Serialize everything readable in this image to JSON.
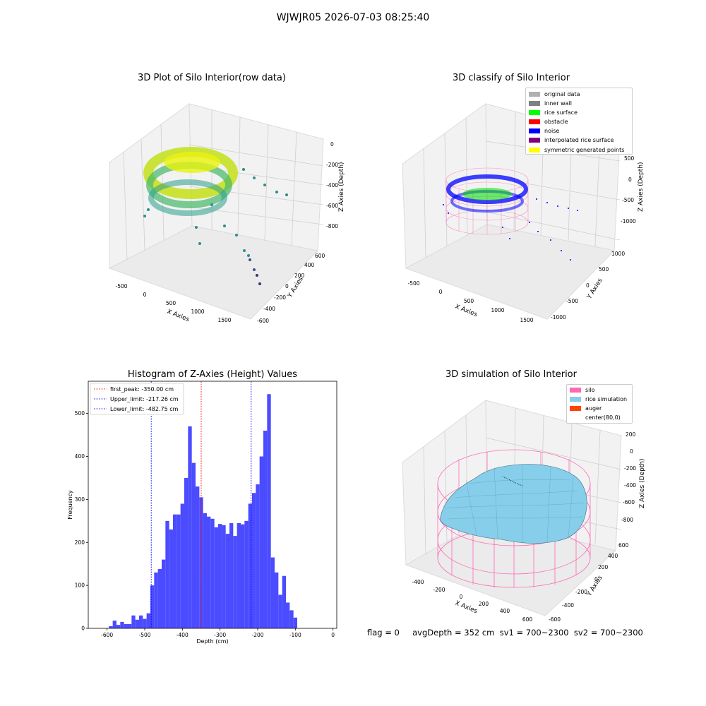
{
  "figure": {
    "title": "WJWJR05 2026-07-03 08:25:40",
    "footer": "flag = 0     avgDepth = 352 cm  sv1 = 700~2300  sv2 = 700~2300"
  },
  "colors": {
    "histogram_bar": "#4b4bff",
    "first_peak_line": "#ff0000",
    "limit_lines": "#0000ff",
    "silo_wire": "#ff69b4",
    "rice_surface": "#87ceeb",
    "auger": "#ff4500"
  },
  "chart_data": [
    {
      "type": "scatter",
      "projection": "3d",
      "title": "3D Plot of Silo Interior(row data)",
      "xlabel": "X Axies",
      "ylabel": "Y Axies",
      "zlabel": "Z Axies (Depth)",
      "x_ticks": [
        "-500",
        "0",
        "500",
        "1000",
        "1500"
      ],
      "y_ticks": [
        "-600",
        "-400",
        "-200",
        "0",
        "200",
        "400",
        "600"
      ],
      "z_ticks": [
        "0",
        "-200",
        "-400",
        "-600",
        "-800"
      ],
      "colormap": "viridis",
      "grid": true
    },
    {
      "type": "scatter",
      "projection": "3d",
      "title": "3D classify of Silo Interior",
      "xlabel": "X Axies",
      "ylabel": "Y Axies",
      "zlabel": "Z Axies (Depth)",
      "x_ticks": [
        "-500",
        "0",
        "500",
        "1000",
        "1500"
      ],
      "y_ticks": [
        "-1000",
        "-500",
        "0",
        "500",
        "1000"
      ],
      "z_ticks": [
        "500",
        "0",
        "-500",
        "-1000"
      ],
      "legend_position": "top-right",
      "legend": [
        {
          "label": "original data",
          "color": "#b0b0b0"
        },
        {
          "label": "inner wall",
          "color": "#808080"
        },
        {
          "label": "rice surface",
          "color": "#00ff00"
        },
        {
          "label": "obstacle",
          "color": "#ff0000"
        },
        {
          "label": "noise",
          "color": "#0000ff"
        },
        {
          "label": "interpolated rice surface",
          "color": "#800080"
        },
        {
          "label": "symmetric generated points",
          "color": "#ffff00"
        }
      ],
      "grid": true
    },
    {
      "type": "bar",
      "title": "Histogram of Z-Axies (Height) Values",
      "xlabel": "Depth (cm)",
      "ylabel": "Frequency",
      "xlim": [
        -650,
        10
      ],
      "ylim": [
        0,
        575
      ],
      "x_ticks": [
        "-600",
        "-500",
        "-400",
        "-300",
        "-200",
        "-100",
        "0"
      ],
      "y_ticks": [
        "0",
        "100",
        "200",
        "300",
        "400",
        "500"
      ],
      "bin_start": -595,
      "bin_width": 10,
      "values": [
        5,
        18,
        8,
        15,
        10,
        10,
        30,
        20,
        30,
        22,
        35,
        100,
        130,
        138,
        160,
        250,
        230,
        265,
        265,
        290,
        350,
        470,
        385,
        330,
        305,
        268,
        260,
        255,
        235,
        243,
        240,
        220,
        245,
        215,
        245,
        242,
        250,
        290,
        315,
        335,
        400,
        460,
        545,
        165,
        130,
        78,
        122,
        60,
        42,
        25
      ],
      "vlines": [
        {
          "label": "first_peak: -350.00 cm",
          "x": -350.0,
          "color": "#ff0000"
        },
        {
          "label": "Upper_limit: -217.26 cm",
          "x": -217.26,
          "color": "#0000ff"
        },
        {
          "label": "Lower_limit: -482.75 cm",
          "x": -482.75,
          "color": "#0000ff"
        }
      ],
      "legend_position": "top-left"
    },
    {
      "type": "surface",
      "projection": "3d",
      "title": "3D simulation of Silo Interior",
      "xlabel": "X Axies",
      "ylabel": "Y Axies",
      "zlabel": "Z Axies (Depth)",
      "x_ticks": [
        "-400",
        "-200",
        "0",
        "200",
        "400",
        "600"
      ],
      "y_ticks": [
        "-600",
        "-400",
        "-200",
        "0",
        "200",
        "400",
        "600"
      ],
      "z_ticks": [
        "200",
        "0",
        "-200",
        "-400",
        "-600",
        "-800"
      ],
      "legend_position": "top-right",
      "legend": [
        {
          "label": "silo",
          "color": "#ff69b4"
        },
        {
          "label": "rice simulation",
          "color": "#87ceeb"
        },
        {
          "label": "auger",
          "color": "#ff4500"
        },
        {
          "label": "center(80,0)",
          "color": ""
        }
      ],
      "grid": true
    }
  ]
}
